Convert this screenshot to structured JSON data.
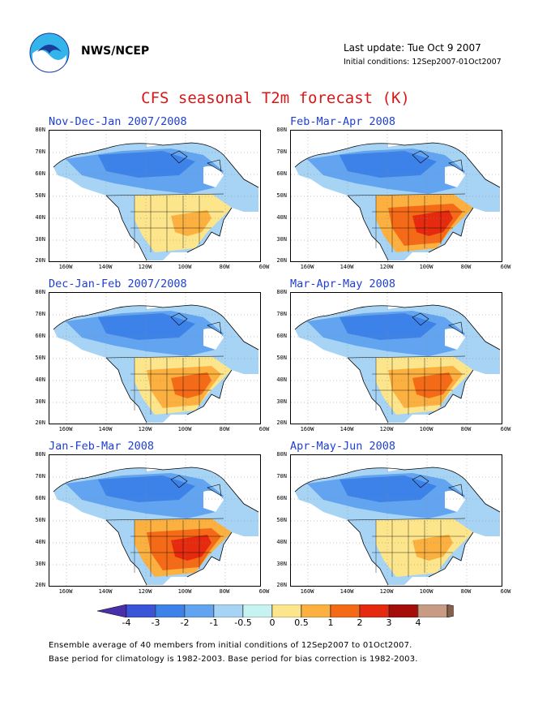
{
  "header": {
    "org": "NWS/NCEP",
    "last_update": "Last update: Tue Oct 9 2007",
    "initial_conditions": "Initial conditions: 12Sep2007-01Oct2007"
  },
  "title": "CFS seasonal T2m forecast (K)",
  "axis": {
    "lat_labels": [
      "80N",
      "70N",
      "60N",
      "50N",
      "40N",
      "30N",
      "20N"
    ],
    "lon_labels": [
      "160W",
      "140W",
      "120W",
      "100W",
      "80W",
      "60W"
    ]
  },
  "panels": [
    {
      "period": "Nov-Dec-Jan 2007/2008",
      "warm_level": "mild"
    },
    {
      "period": "Feb-Mar-Apr 2008",
      "warm_level": "strong"
    },
    {
      "period": "Dec-Jan-Feb 2007/2008",
      "warm_level": "moderate"
    },
    {
      "period": "Mar-Apr-May 2008",
      "warm_level": "moderate"
    },
    {
      "period": "Jan-Feb-Mar 2008",
      "warm_level": "strong"
    },
    {
      "period": "Apr-May-Jun 2008",
      "warm_level": "mild"
    }
  ],
  "colorbar": {
    "labels": [
      "-4",
      "-3",
      "-2",
      "-1",
      "-0.5",
      "0",
      "0.5",
      "1",
      "2",
      "3",
      "4"
    ],
    "colors": [
      "#4a2faa",
      "#3a55d8",
      "#3d82e8",
      "#62a4f0",
      "#a7d4f5",
      "#c6f2f2",
      "#fde58c",
      "#fbb040",
      "#f56a16",
      "#e52a10",
      "#a50e08",
      "#c79b84",
      "#84614e"
    ]
  },
  "footer": {
    "line1": "Ensemble average of 40 members from initial conditions of 12Sep2007 to 01Oct2007.",
    "line2": "Base period for climatology is 1982-2003. Base period for bias correction is 1982-2003."
  }
}
